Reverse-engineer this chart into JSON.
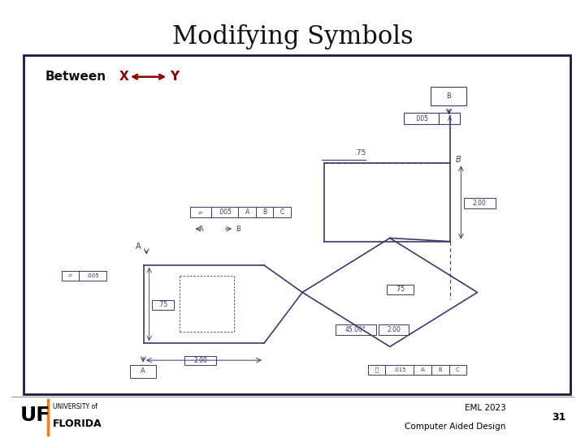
{
  "title": "Modifying Symbols",
  "title_fontsize": 22,
  "bg_color": "#ffffff",
  "box_border_color": "#1a1a3e",
  "between_label": "Between",
  "between_color": "#8b0000",
  "footer_line_color": "#aaaaaa",
  "eml_text": "EML 2023",
  "cad_text": "Computer Aided Design",
  "page_num": "31",
  "drawing_color": "#3a3a6e"
}
